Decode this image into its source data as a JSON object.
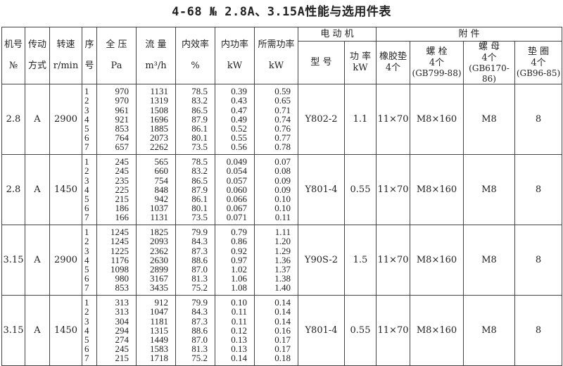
{
  "title": "4-68 № 2.8A、3.15A性能与选用件表",
  "header": {
    "machine_no": [
      "机号",
      "№"
    ],
    "drive": [
      "传动",
      "方式"
    ],
    "speed": [
      "转速",
      "r/min"
    ],
    "seq": [
      "序",
      "号"
    ],
    "pressure": [
      "全 压",
      "Pa"
    ],
    "flow": [
      "流 量",
      "m³/h"
    ],
    "efficiency": [
      "内效率",
      "%"
    ],
    "inner_power": [
      "内功率",
      "kW"
    ],
    "required_power": [
      "所需功率",
      "kW"
    ],
    "motor": "电 动 机",
    "motor_model": "型 号",
    "motor_power": [
      "功 率",
      "kW"
    ],
    "accessories": "附 件",
    "rubber_pad": [
      "橡胶垫",
      "4个"
    ],
    "bolt": [
      "螺 栓",
      "4个",
      "(GB799-88)"
    ],
    "nut": [
      "螺 母",
      "4个",
      "(GB6170-86)"
    ],
    "washer": [
      "垫 圈",
      "4个",
      "(GB96-85)"
    ]
  },
  "blocks": [
    {
      "machine_no": "2.8",
      "drive": "A",
      "speed": "2900",
      "seq": [
        "1",
        "2",
        "3",
        "4",
        "5",
        "6",
        "7"
      ],
      "pressure": [
        "970",
        "970",
        "961",
        "921",
        "853",
        "764",
        "657"
      ],
      "flow": [
        "1131",
        "1319",
        "1508",
        "1696",
        "1885",
        "2073",
        "2262"
      ],
      "efficiency": [
        "78.5",
        "83.2",
        "86.5",
        "87.9",
        "86.1",
        "80.1",
        "73.5"
      ],
      "inner_power": [
        "0.39",
        "0.43",
        "0.47",
        "0.49",
        "0.52",
        "0.55",
        "0.56"
      ],
      "required_power": [
        "0.59",
        "0.65",
        "0.71",
        "0.74",
        "0.76",
        "0.77",
        "0.78"
      ],
      "motor_model": "Y802-2",
      "motor_power": "1.1",
      "rubber_pad": "11×70",
      "bolt": "M8×160",
      "nut": "M8",
      "washer": "8"
    },
    {
      "machine_no": "2.8",
      "drive": "A",
      "speed": "1450",
      "seq": [
        "1",
        "2",
        "3",
        "4",
        "5",
        "6",
        "7"
      ],
      "pressure": [
        "245",
        "245",
        "235",
        "225",
        "215",
        "186",
        "166"
      ],
      "flow": [
        "565",
        "660",
        "754",
        "848",
        "942",
        "1037",
        "1131"
      ],
      "efficiency": [
        "78.5",
        "83.2",
        "86.5",
        "87.9",
        "86.1",
        "80.1",
        "73.5"
      ],
      "inner_power": [
        "0.049",
        "0.054",
        "0.057",
        "0.060",
        "0.066",
        "0.067",
        "0.071"
      ],
      "required_power": [
        "0.07",
        "0.08",
        "0.09",
        "0.09",
        "0.10",
        "0.10",
        "0.11"
      ],
      "motor_model": "Y801-4",
      "motor_power": "0.55",
      "rubber_pad": "11×70",
      "bolt": "M8×160",
      "nut": "M8",
      "washer": "8"
    },
    {
      "machine_no": "3.15",
      "drive": "A",
      "speed": "2900",
      "seq": [
        "1",
        "2",
        "3",
        "4",
        "5",
        "6",
        "7"
      ],
      "pressure": [
        "1245",
        "1245",
        "1225",
        "1176",
        "1098",
        "980",
        "853"
      ],
      "flow": [
        "1825",
        "2093",
        "2362",
        "2630",
        "2899",
        "3167",
        "3435"
      ],
      "efficiency": [
        "79.9",
        "84.3",
        "87.3",
        "88.6",
        "87.0",
        "81.3",
        "75.2"
      ],
      "inner_power": [
        "0.79",
        "0.86",
        "0.92",
        "0.97",
        "1.02",
        "1.06",
        "1.08"
      ],
      "required_power": [
        "1.11",
        "1.20",
        "1.29",
        "1.36",
        "1.37",
        "1.38",
        "1.40"
      ],
      "motor_model": "Y90S-2",
      "motor_power": "1.5",
      "rubber_pad": "11×70",
      "bolt": "M8×160",
      "nut": "M8",
      "washer": "8"
    },
    {
      "machine_no": "3.15",
      "drive": "A",
      "speed": "1450",
      "seq": [
        "1",
        "2",
        "3",
        "4",
        "5",
        "6",
        "7"
      ],
      "pressure": [
        "313",
        "313",
        "304",
        "294",
        "274",
        "245",
        "215"
      ],
      "flow": [
        "912",
        "1047",
        "1181",
        "1315",
        "1449",
        "1583",
        "1718"
      ],
      "efficiency": [
        "79.9",
        "84.3",
        "87.3",
        "88.6",
        "87.0",
        "81.3",
        "75.2"
      ],
      "inner_power": [
        "0.10",
        "0.11",
        "0.11",
        "0.12",
        "0.13",
        "0.13",
        "0.14"
      ],
      "required_power": [
        "0.14",
        "0.14",
        "0.14",
        "0.16",
        "0.17",
        "0.17",
        "0.18"
      ],
      "motor_model": "Y801-4",
      "motor_power": "0.55",
      "rubber_pad": "11×70",
      "bolt": "M8×160",
      "nut": "M8",
      "washer": "8"
    }
  ]
}
